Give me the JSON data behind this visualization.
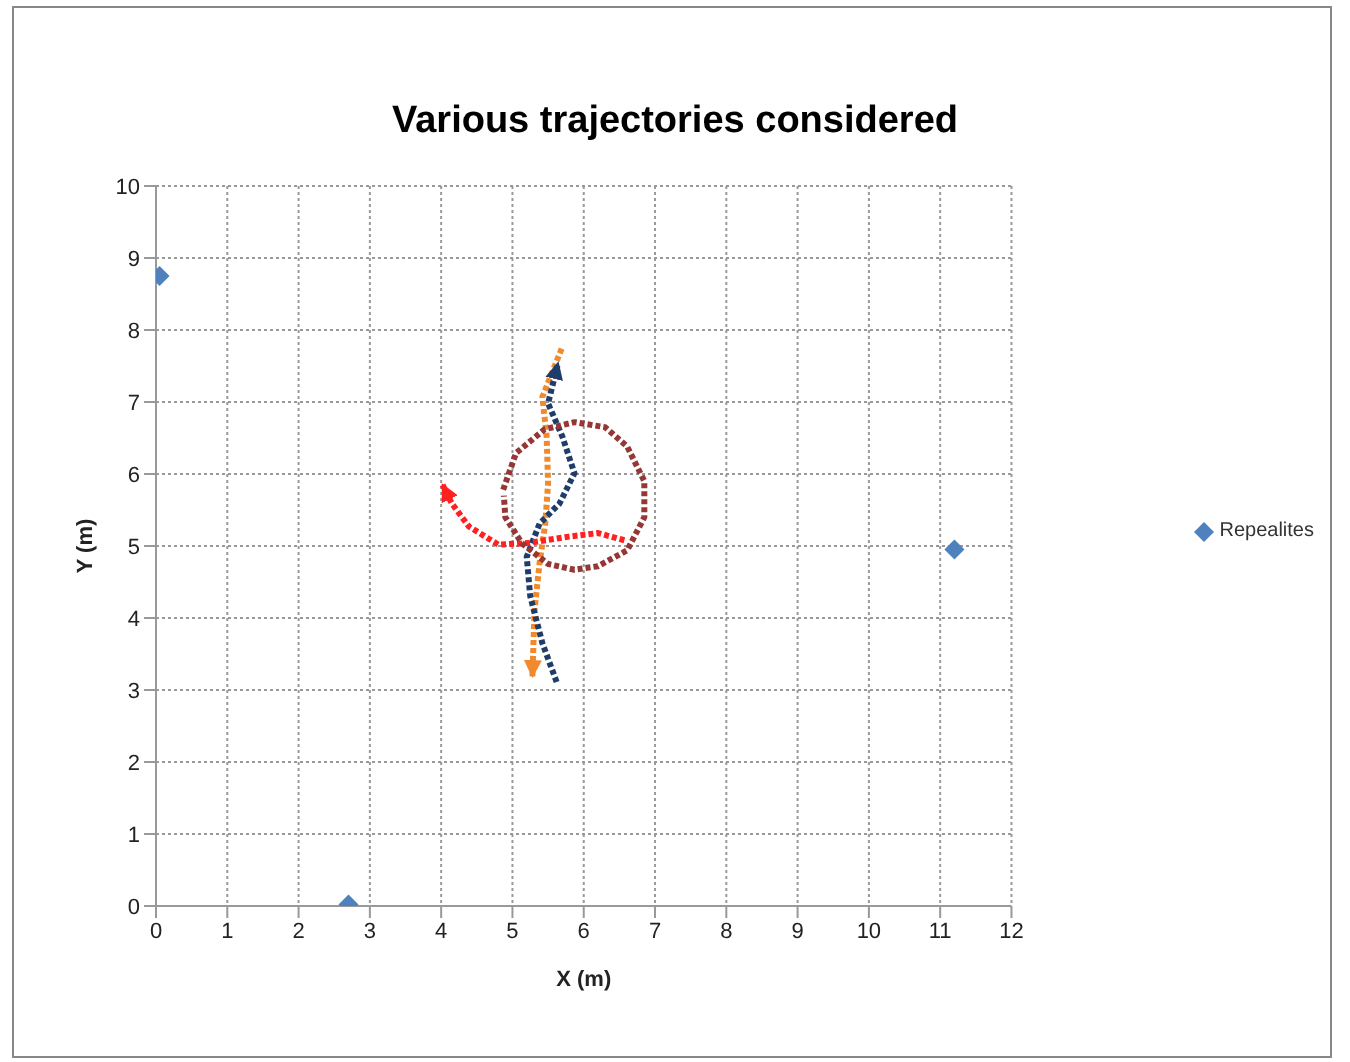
{
  "chart_data": {
    "type": "scatter",
    "title": "Various trajectories considered",
    "xlabel": "X (m)",
    "ylabel": "Y (m)",
    "xlim": [
      0,
      12
    ],
    "xticks": [
      0,
      1,
      2,
      3,
      4,
      5,
      6,
      7,
      8,
      9,
      10,
      11,
      12
    ],
    "ylim": [
      0,
      10
    ],
    "yticks": [
      0,
      1,
      2,
      3,
      4,
      5,
      6,
      7,
      8,
      9,
      10
    ],
    "grid": true,
    "legend": "right",
    "series": [
      {
        "name": "Repealites",
        "marker": "diamond",
        "color": "#4f81bd",
        "x": [
          0.05,
          2.7,
          11.2
        ],
        "values": [
          8.75,
          0.02,
          4.95
        ]
      },
      {
        "type": "line",
        "marker": "none",
        "line_style": "dotted",
        "color": "#f08a2c",
        "x": [
          5.69,
          5.42,
          5.48,
          5.5,
          5.46,
          5.38,
          5.31,
          5.28
        ],
        "values": [
          7.74,
          7.07,
          6.52,
          5.87,
          5.31,
          4.76,
          4.11,
          3.19
        ]
      },
      {
        "type": "line",
        "marker": "none",
        "line_style": "dotted",
        "color": "#1f3d6b",
        "x": [
          5.62,
          5.42,
          5.25,
          5.2,
          5.38,
          5.66,
          5.87,
          5.7,
          5.5,
          5.64
        ],
        "values": [
          3.11,
          3.65,
          4.3,
          4.85,
          5.31,
          5.59,
          6.01,
          6.52,
          6.98,
          7.54
        ]
      },
      {
        "type": "line",
        "marker": "none",
        "line_style": "dotted",
        "color": "#ff2020",
        "x": [
          6.57,
          6.2,
          5.79,
          5.21,
          4.8,
          4.39,
          4.15,
          4.02
        ],
        "values": [
          5.08,
          5.18,
          5.13,
          5.04,
          5.02,
          5.27,
          5.59,
          5.85
        ]
      },
      {
        "type": "line",
        "marker": "none",
        "line_style": "dotted",
        "color": "#953735",
        "x": [
          4.87,
          5.05,
          5.45,
          5.87,
          6.3,
          6.61,
          6.85,
          6.85,
          6.61,
          6.2,
          5.87,
          5.5,
          5.13,
          4.9,
          4.88
        ],
        "values": [
          5.78,
          6.29,
          6.62,
          6.72,
          6.65,
          6.38,
          5.9,
          5.4,
          4.94,
          4.72,
          4.67,
          4.75,
          5.04,
          5.4,
          5.7
        ]
      }
    ]
  }
}
